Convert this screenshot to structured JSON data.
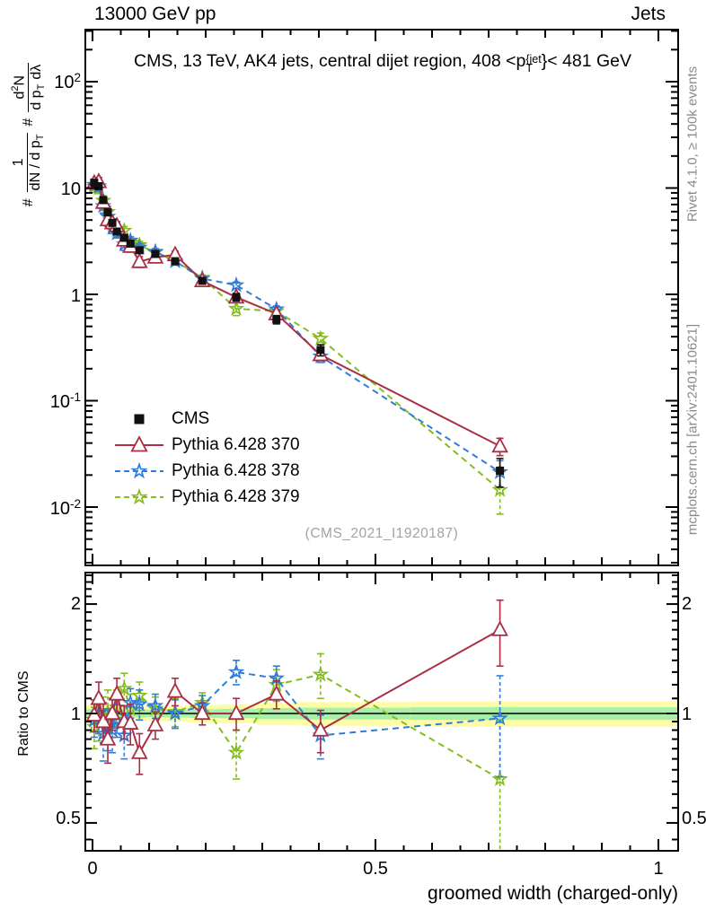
{
  "header": {
    "beam": "13000 GeV pp",
    "topic": "Jets"
  },
  "title": {
    "prefix": "CMS, 13 TeV, AK4 jets, central dijet region, 408 <p",
    "sup": "{jet",
    "sub": "T",
    "suffix": "}< 481 GeV"
  },
  "ylabel_main": {
    "hash1": "#",
    "num1": "1",
    "den1a": "dN / d p",
    "den1sub": "T",
    "hash2": "#",
    "num2a": "d",
    "num2sup": "2",
    "num2b": "N",
    "den2a": "d p",
    "den2sub": "T",
    "den2b": "d",
    "den2c": "λ"
  },
  "credits": {
    "right_top": "Rivet 4.1.0, ≥ 100k events",
    "right_bottom": "mcplots.cern.ch [arXiv:2401.10621]"
  },
  "watermark": "(CMS_2021_I1920187)",
  "ratio_label": "Ratio to CMS",
  "axes": {
    "xlabel": "groomed width (charged-only)",
    "x_ticks": [
      "0",
      "0.5",
      "1"
    ],
    "y_ticks_main": [
      {
        "base": "10",
        "exp": "2"
      },
      {
        "base": "10",
        "exp": ""
      },
      {
        "base": "1",
        "exp": ""
      },
      {
        "base": "10",
        "exp": "-1"
      },
      {
        "base": "10",
        "exp": "-2"
      }
    ],
    "y_ticks_ratio": [
      "2",
      "1",
      "0.5"
    ]
  },
  "legend": {
    "items": [
      {
        "label": "CMS",
        "marker": "square",
        "color": "#111111",
        "line": "none"
      },
      {
        "label": "Pythia 6.428 370",
        "marker": "triangle",
        "color": "#aa2e44",
        "line": "solid"
      },
      {
        "label": "Pythia 6.428 378",
        "marker": "star",
        "color": "#2e7ddc",
        "line": "dashed"
      },
      {
        "label": "Pythia 6.428 379",
        "marker": "star",
        "color": "#84bd1e",
        "line": "dashed"
      }
    ]
  },
  "chart_data": {
    "type": "line",
    "title": "CMS, 13 TeV, AK4 jets, central dijet region, 408 < pT{jet} < 481 GeV",
    "xlabel": "groomed width (charged-only)",
    "ylabel": "# 1/(dN/dpT) # d2N/(dpT dlambda)",
    "main_axis": {
      "yscale": "log",
      "ylim": [
        0.00285,
        305
      ],
      "xlim": [
        -0.0127,
        1.0349
      ]
    },
    "ratio_axis": {
      "yscale": "log",
      "ylim": [
        0.42,
        2.44
      ],
      "ref": 1
    },
    "x": [
      0.003,
      0.011,
      0.019,
      0.027,
      0.035,
      0.043,
      0.056,
      0.067,
      0.083,
      0.111,
      0.146,
      0.194,
      0.254,
      0.325,
      0.403,
      0.72
    ],
    "cms": {
      "name": "CMS",
      "color": "#111111",
      "marker": "square",
      "values": [
        11.2,
        10.4,
        7.7,
        5.9,
        4.7,
        3.9,
        3.4,
        3.0,
        2.6,
        2.4,
        2.05,
        1.34,
        0.94,
        0.58,
        0.3,
        0.022
      ],
      "rel_err": [
        0.05,
        0.05,
        0.04,
        0.04,
        0.04,
        0.04,
        0.04,
        0.04,
        0.04,
        0.04,
        0.04,
        0.05,
        0.08,
        0.09,
        0.12,
        0.3
      ]
    },
    "series": [
      {
        "name": "Pythia 6.428 379",
        "color": "#84bd1e",
        "marker": "star",
        "dash": "dashed",
        "ratio": [
          0.92,
          0.96,
          0.99,
          1.01,
          0.98,
          1.04,
          1.17,
          1.03,
          1.12,
          1.03,
          1.01,
          1.07,
          0.78,
          1.2,
          1.28,
          0.66
        ],
        "ratio_err": [
          0.12,
          0.12,
          0.12,
          0.15,
          0.12,
          0.12,
          0.12,
          0.1,
          0.1,
          0.08,
          0.09,
          0.07,
          0.12,
          0.12,
          0.18,
          0.3
        ]
      },
      {
        "name": "Pythia 6.428 378",
        "color": "#2e7ddc",
        "marker": "star",
        "dash": "dashed",
        "ratio": [
          0.96,
          1.0,
          0.88,
          0.91,
          0.9,
          0.96,
          0.87,
          1.07,
          1.06,
          1.05,
          1.0,
          1.05,
          1.3,
          1.25,
          0.87,
          0.97
        ],
        "ratio_err": [
          0.1,
          0.12,
          0.14,
          0.12,
          0.12,
          0.1,
          0.12,
          0.1,
          0.1,
          0.08,
          0.09,
          0.07,
          0.1,
          0.1,
          0.12,
          0.3
        ]
      },
      {
        "name": "Pythia 6.428 370",
        "color": "#aa2e44",
        "marker": "triangle",
        "dash": "solid",
        "ratio": [
          0.99,
          1.1,
          0.95,
          0.85,
          1.0,
          1.13,
          0.95,
          0.94,
          0.78,
          0.93,
          1.15,
          1.0,
          1.0,
          1.13,
          0.9,
          1.7
        ],
        "ratio_err": [
          0.1,
          0.12,
          0.12,
          0.12,
          0.1,
          0.12,
          0.1,
          0.12,
          0.1,
          0.08,
          0.1,
          0.07,
          0.1,
          0.1,
          0.12,
          0.35
        ]
      }
    ],
    "band": {
      "yellow_color": "#fffca8",
      "green_color": "#a8f0a8",
      "yellow_hw": [
        0.055,
        0.055,
        0.055,
        0.06,
        0.055,
        0.055,
        0.05,
        0.05,
        0.05,
        0.045,
        0.05,
        0.055,
        0.06,
        0.07,
        0.075,
        0.08
      ]
    }
  }
}
